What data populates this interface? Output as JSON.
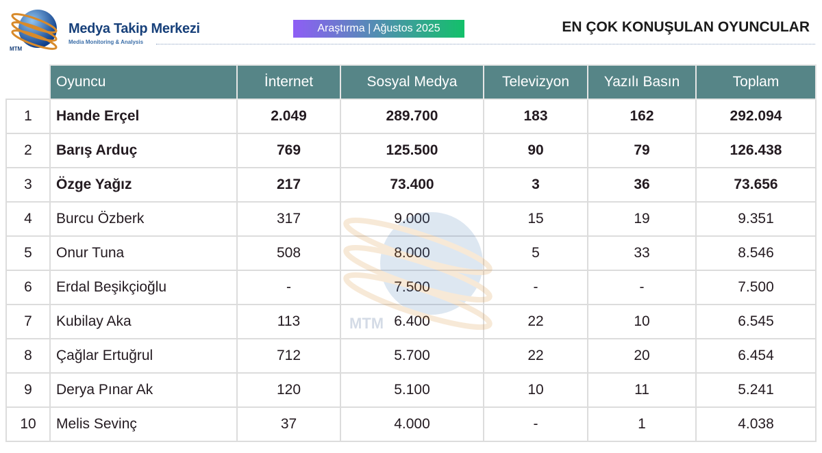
{
  "brand": {
    "name": "Medya Takip Merkezi",
    "tagline": "Media Monitoring & Analysis",
    "logo_text": "MTM"
  },
  "badge": "Araştırma | Ağustos 2025",
  "title": "EN ÇOK KONUŞULAN OYUNCULAR",
  "colors": {
    "header": "#568587",
    "brand": "#17407a",
    "badge_start": "#8e5ef5",
    "badge_end": "#13c06a"
  },
  "table": {
    "headers": [
      "Oyuncu",
      "İnternet",
      "Sosyal Medya",
      "Televizyon",
      "Yazılı Basın",
      "Toplam"
    ],
    "rows": [
      [
        "1",
        "Hande Erçel",
        "2.049",
        "289.700",
        "183",
        "162",
        "292.094"
      ],
      [
        "2",
        "Barış Arduç",
        "769",
        "125.500",
        "90",
        "79",
        "126.438"
      ],
      [
        "3",
        "Özge Yağız",
        "217",
        "73.400",
        "3",
        "36",
        "73.656"
      ],
      [
        "4",
        "Burcu Özberk",
        "317",
        "9.000",
        "15",
        "19",
        "9.351"
      ],
      [
        "5",
        "Onur Tuna",
        "508",
        "8.000",
        "5",
        "33",
        "8.546"
      ],
      [
        "6",
        "Erdal Beşikçioğlu",
        "-",
        "7.500",
        "-",
        "-",
        "7.500"
      ],
      [
        "7",
        "Kubilay Aka",
        "113",
        "6.400",
        "22",
        "10",
        "6.545"
      ],
      [
        "8",
        "Çağlar Ertuğrul",
        "712",
        "5.700",
        "22",
        "20",
        "6.454"
      ],
      [
        "9",
        "Derya Pınar Ak",
        "120",
        "5.100",
        "10",
        "11",
        "5.241"
      ],
      [
        "10",
        "Melis Sevinç",
        "37",
        "4.000",
        "-",
        "1",
        "4.038"
      ]
    ]
  }
}
